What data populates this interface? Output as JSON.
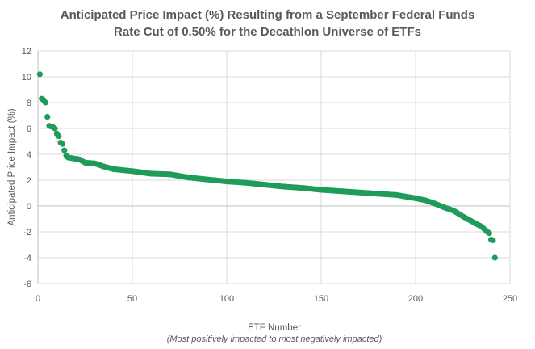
{
  "chart_data": {
    "type": "scatter",
    "title_line1": "Anticipated Price Impact (%) Resulting from a September Federal Funds",
    "title_line2": "Rate Cut of 0.50% for the Decathlon Universe of ETFs",
    "xlabel": "ETF Number",
    "xlabel_sub": "(Most positively impacted to most negatively impacted)",
    "ylabel": "Anticipated Price Impact (%)",
    "xlim": [
      0,
      250
    ],
    "ylim": [
      -6,
      12
    ],
    "xticks": [
      0,
      50,
      100,
      150,
      200,
      250
    ],
    "yticks": [
      -6,
      -4,
      -2,
      0,
      2,
      4,
      6,
      8,
      10,
      12
    ],
    "grid": true,
    "legend": "none",
    "marker_color": "#1F9B5A",
    "anchors": [
      [
        1,
        10.2
      ],
      [
        2,
        8.3
      ],
      [
        3,
        8.2
      ],
      [
        4,
        8.0
      ],
      [
        5,
        6.9
      ],
      [
        6,
        6.2
      ],
      [
        7,
        6.15
      ],
      [
        8,
        6.1
      ],
      [
        9,
        6.0
      ],
      [
        10,
        5.6
      ],
      [
        11,
        5.4
      ],
      [
        12,
        4.9
      ],
      [
        13,
        4.8
      ],
      [
        14,
        4.3
      ],
      [
        15,
        3.9
      ],
      [
        16,
        3.75
      ],
      [
        18,
        3.7
      ],
      [
        22,
        3.6
      ],
      [
        25,
        3.35
      ],
      [
        30,
        3.3
      ],
      [
        35,
        3.05
      ],
      [
        40,
        2.85
      ],
      [
        50,
        2.7
      ],
      [
        60,
        2.5
      ],
      [
        70,
        2.45
      ],
      [
        80,
        2.2
      ],
      [
        90,
        2.05
      ],
      [
        100,
        1.9
      ],
      [
        110,
        1.8
      ],
      [
        120,
        1.65
      ],
      [
        130,
        1.5
      ],
      [
        140,
        1.4
      ],
      [
        150,
        1.25
      ],
      [
        160,
        1.15
      ],
      [
        170,
        1.05
      ],
      [
        180,
        0.95
      ],
      [
        190,
        0.85
      ],
      [
        200,
        0.6
      ],
      [
        205,
        0.45
      ],
      [
        210,
        0.2
      ],
      [
        215,
        -0.1
      ],
      [
        220,
        -0.35
      ],
      [
        225,
        -0.8
      ],
      [
        230,
        -1.2
      ],
      [
        235,
        -1.6
      ],
      [
        238,
        -2.0
      ],
      [
        239,
        -2.1
      ],
      [
        240,
        -2.6
      ],
      [
        241,
        -2.65
      ],
      [
        242,
        -4.0
      ]
    ],
    "n_points": 242
  }
}
